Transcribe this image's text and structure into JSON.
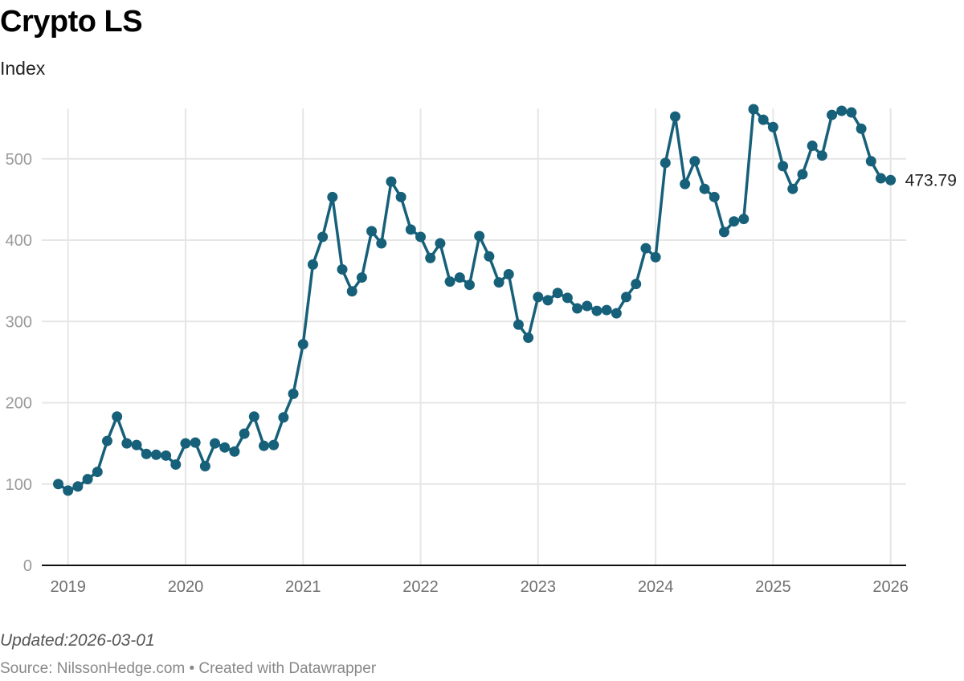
{
  "title": "Crypto LS",
  "subtitle": "Index",
  "footer": {
    "updated": "Updated:2026-03-01",
    "source": "Source: NilssonHedge.com • Created with Datawrapper"
  },
  "colors": {
    "line": "#17607a",
    "grid": "#e6e6e6",
    "axis": "#111111"
  },
  "chart_data": {
    "type": "line",
    "title": "Crypto LS",
    "subtitle": "Index",
    "xlabel": "",
    "ylabel": "",
    "ylim": [
      0,
      560
    ],
    "yticks": [
      0,
      100,
      200,
      300,
      400,
      500
    ],
    "xticks": [
      "2019",
      "2020",
      "2021",
      "2022",
      "2023",
      "2024",
      "2025",
      "2026"
    ],
    "grid": true,
    "legend": "none",
    "end_label": "473.79",
    "series": [
      {
        "name": "Crypto LS",
        "x": [
          "2018-12",
          "2019-01",
          "2019-02",
          "2019-03",
          "2019-04",
          "2019-05",
          "2019-06",
          "2019-07",
          "2019-08",
          "2019-09",
          "2019-10",
          "2019-11",
          "2019-12",
          "2020-01",
          "2020-02",
          "2020-03",
          "2020-04",
          "2020-05",
          "2020-06",
          "2020-07",
          "2020-08",
          "2020-09",
          "2020-10",
          "2020-11",
          "2020-12",
          "2021-01",
          "2021-02",
          "2021-03",
          "2021-04",
          "2021-05",
          "2021-06",
          "2021-07",
          "2021-08",
          "2021-09",
          "2021-10",
          "2021-11",
          "2021-12",
          "2022-01",
          "2022-02",
          "2022-03",
          "2022-04",
          "2022-05",
          "2022-06",
          "2022-07",
          "2022-08",
          "2022-09",
          "2022-10",
          "2022-11",
          "2022-12",
          "2023-01",
          "2023-02",
          "2023-03",
          "2023-04",
          "2023-05",
          "2023-06",
          "2023-07",
          "2023-08",
          "2023-09",
          "2023-10",
          "2023-11",
          "2023-12",
          "2024-01",
          "2024-02",
          "2024-03",
          "2024-04",
          "2024-05",
          "2024-06",
          "2024-07",
          "2024-08",
          "2024-09",
          "2024-10",
          "2024-11",
          "2024-12",
          "2025-01",
          "2025-02",
          "2025-03",
          "2025-04",
          "2025-05",
          "2025-06",
          "2025-07",
          "2025-08",
          "2025-09",
          "2025-10",
          "2025-11",
          "2025-12",
          "2026-01"
        ],
        "values": [
          100,
          92,
          97,
          106,
          115,
          153,
          183,
          150,
          148,
          137,
          136,
          135,
          124,
          150,
          151,
          122,
          150,
          145,
          140,
          162,
          183,
          147,
          148,
          182,
          211,
          272,
          370,
          404,
          453,
          364,
          337,
          354,
          411,
          396,
          472,
          453,
          413,
          404,
          378,
          396,
          349,
          354,
          345,
          405,
          380,
          348,
          358,
          296,
          280,
          330,
          326,
          335,
          329,
          316,
          319,
          313,
          314,
          310,
          330,
          346,
          390,
          379,
          495,
          552,
          469,
          497,
          463,
          453,
          410,
          423,
          426,
          561,
          548,
          539,
          491,
          463,
          481,
          516,
          504,
          554,
          559,
          557,
          537,
          497,
          476,
          473.79
        ]
      }
    ]
  }
}
